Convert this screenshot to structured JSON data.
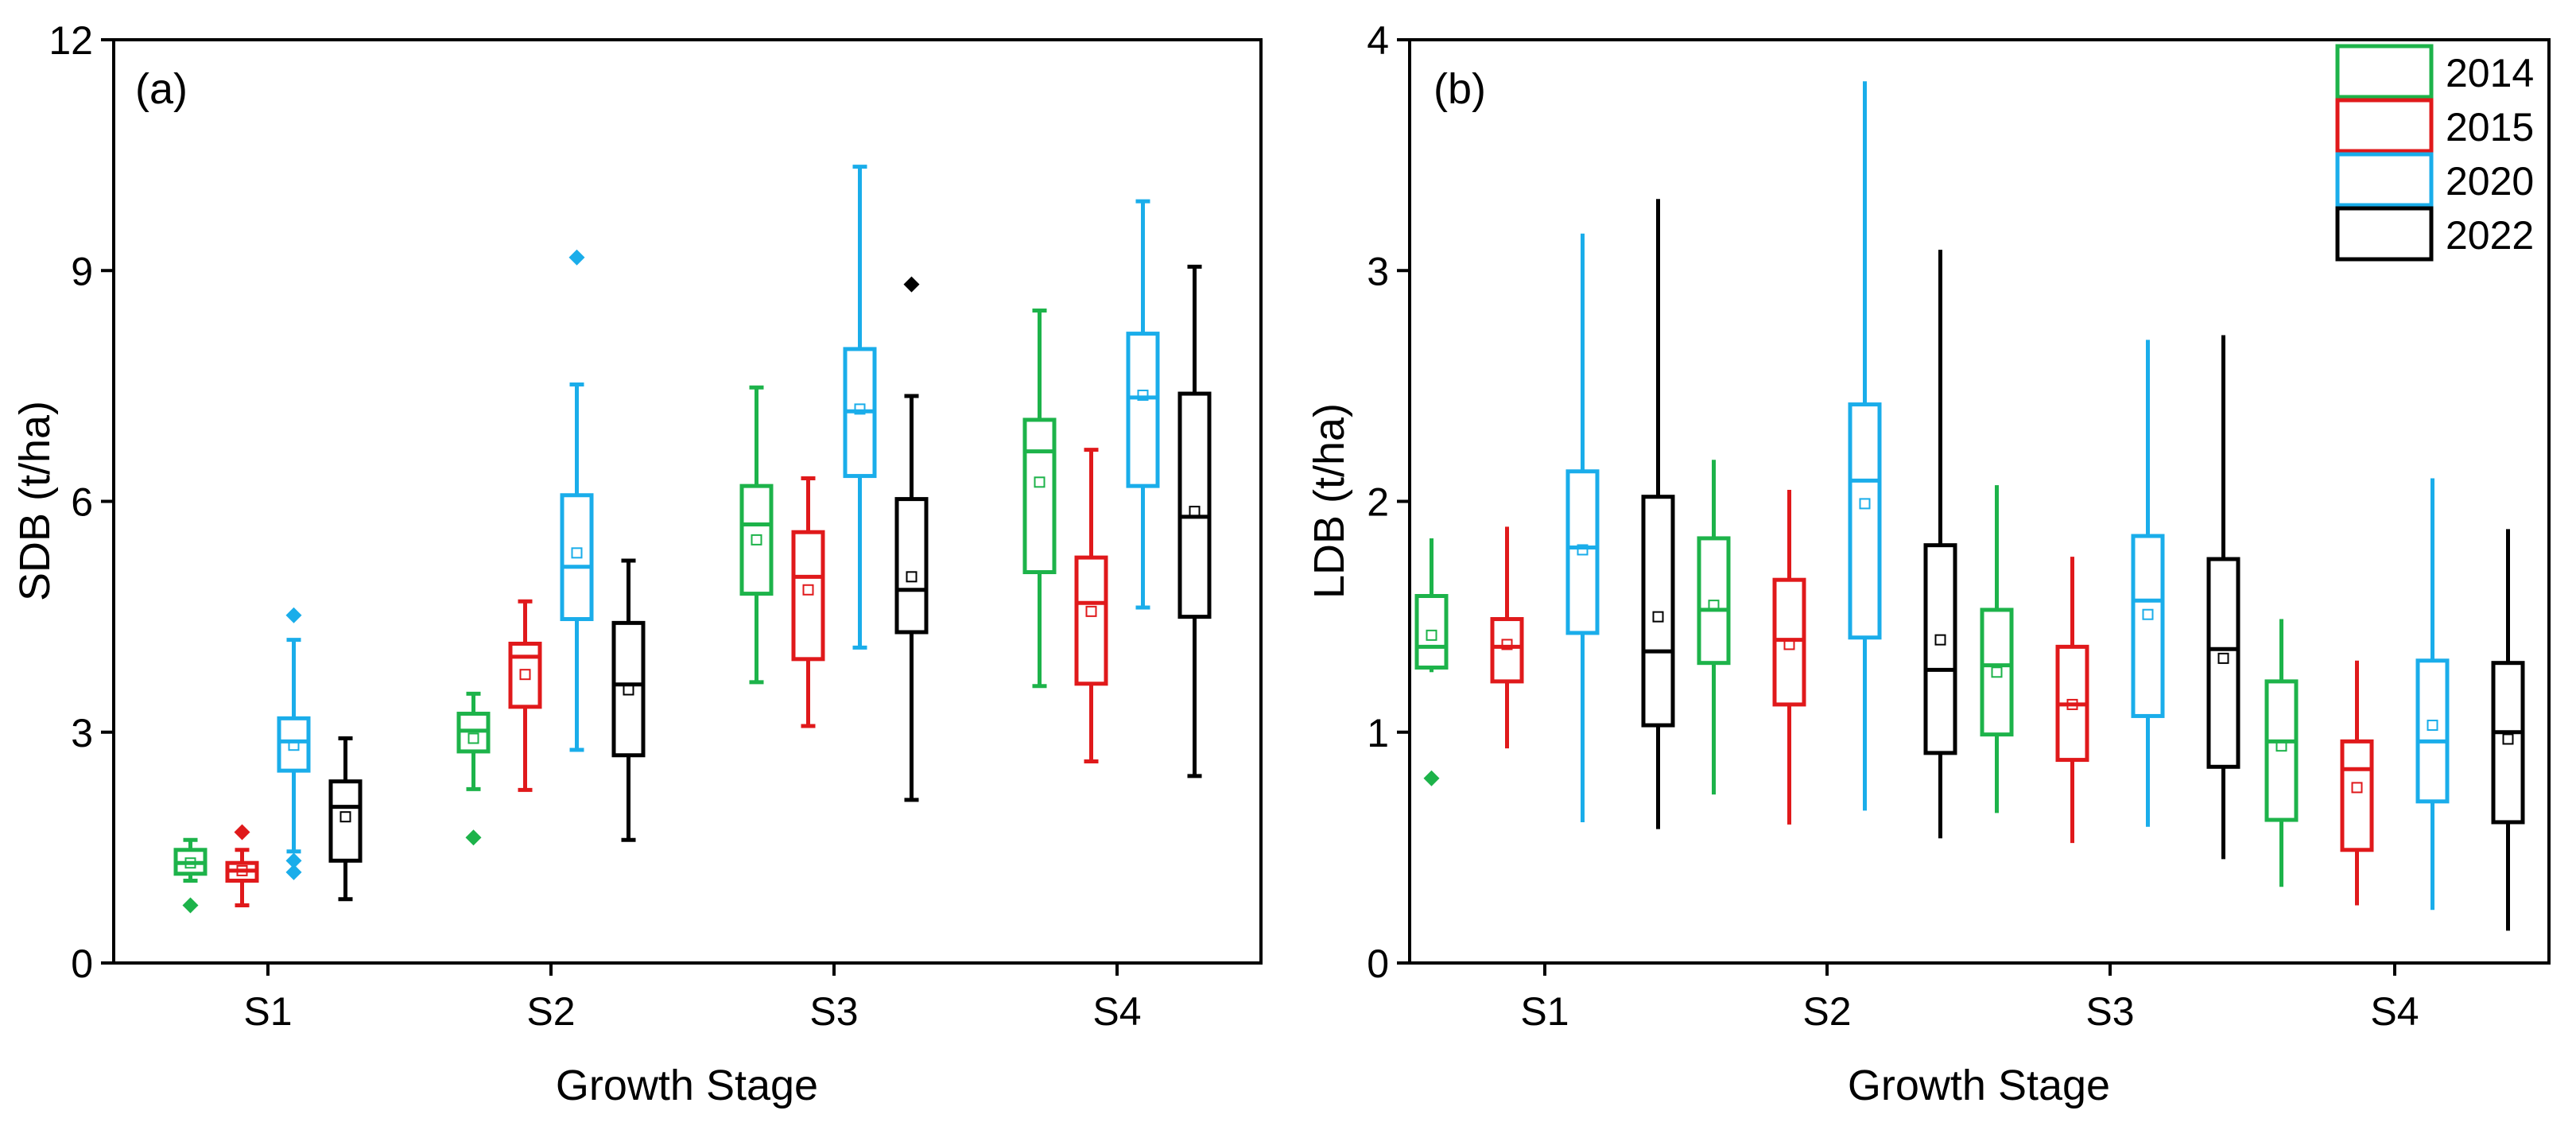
{
  "figure": {
    "colors": {
      "2014": "#1db34a",
      "2015": "#e0191b",
      "2020": "#1aadea",
      "2022": "#000000"
    },
    "legend": {
      "entries": [
        "2014",
        "2015",
        "2020",
        "2022"
      ],
      "placement": "top-right"
    }
  },
  "chart_data": [
    {
      "type": "box",
      "panel_label": "(a)",
      "title": "",
      "xlabel": "Growth Stage",
      "ylabel": "SDB (t/ha)",
      "ylim": [
        0,
        12
      ],
      "yticks": [
        0,
        3,
        6,
        9,
        12
      ],
      "ytick_labels": [
        "0",
        "3",
        "6",
        "9",
        "12"
      ],
      "categories": [
        "S1",
        "S2",
        "S3",
        "S4"
      ],
      "series": [
        {
          "name": "2014",
          "color": "#1db34a",
          "stats": [
            {
              "min": 1.07,
              "q1": 1.16,
              "median": 1.3,
              "q3": 1.47,
              "max": 1.6,
              "mean": 1.3,
              "outliers": [
                0.75
              ]
            },
            {
              "min": 2.26,
              "q1": 2.75,
              "median": 3.02,
              "q3": 3.24,
              "max": 3.5,
              "mean": 2.92,
              "outliers": [
                1.63
              ]
            },
            {
              "min": 3.65,
              "q1": 4.8,
              "median": 5.7,
              "q3": 6.2,
              "max": 7.48,
              "mean": 5.5,
              "outliers": []
            },
            {
              "min": 3.6,
              "q1": 5.08,
              "median": 6.65,
              "q3": 7.06,
              "max": 8.48,
              "mean": 6.25,
              "outliers": []
            }
          ]
        },
        {
          "name": "2015",
          "color": "#e0191b",
          "stats": [
            {
              "min": 0.75,
              "q1": 1.07,
              "median": 1.2,
              "q3": 1.3,
              "max": 1.47,
              "mean": 1.2,
              "outliers": [
                1.7
              ]
            },
            {
              "min": 2.25,
              "q1": 3.33,
              "median": 3.98,
              "q3": 4.15,
              "max": 4.7,
              "mean": 3.75,
              "outliers": []
            },
            {
              "min": 3.08,
              "q1": 3.95,
              "median": 5.02,
              "q3": 5.6,
              "max": 6.3,
              "mean": 4.85,
              "outliers": []
            },
            {
              "min": 2.62,
              "q1": 3.63,
              "median": 4.68,
              "q3": 5.27,
              "max": 6.67,
              "mean": 4.57,
              "outliers": []
            }
          ]
        },
        {
          "name": "2020",
          "color": "#1aadea",
          "stats": [
            {
              "min": 1.45,
              "q1": 2.5,
              "median": 2.88,
              "q3": 3.18,
              "max": 4.2,
              "mean": 2.83,
              "outliers": [
                1.18,
                1.33,
                4.52
              ]
            },
            {
              "min": 2.77,
              "q1": 4.47,
              "median": 5.15,
              "q3": 6.08,
              "max": 7.52,
              "mean": 5.33,
              "outliers": [
                9.17
              ]
            },
            {
              "min": 4.1,
              "q1": 6.33,
              "median": 7.17,
              "q3": 7.98,
              "max": 10.35,
              "mean": 7.2,
              "outliers": []
            },
            {
              "min": 4.62,
              "q1": 6.2,
              "median": 7.35,
              "q3": 8.18,
              "max": 9.9,
              "mean": 7.38,
              "outliers": []
            }
          ]
        },
        {
          "name": "2022",
          "color": "#000000",
          "stats": [
            {
              "min": 0.83,
              "q1": 1.33,
              "median": 2.03,
              "q3": 2.36,
              "max": 2.92,
              "mean": 1.9,
              "outliers": []
            },
            {
              "min": 1.6,
              "q1": 2.7,
              "median": 3.62,
              "q3": 4.42,
              "max": 5.23,
              "mean": 3.55,
              "outliers": []
            },
            {
              "min": 2.12,
              "q1": 4.3,
              "median": 4.85,
              "q3": 6.03,
              "max": 7.37,
              "mean": 5.02,
              "outliers": [
                8.82
              ]
            },
            {
              "min": 2.43,
              "q1": 4.5,
              "median": 5.8,
              "q3": 7.4,
              "max": 9.05,
              "mean": 5.87,
              "outliers": []
            }
          ]
        }
      ]
    },
    {
      "type": "box",
      "panel_label": "(b)",
      "title": "",
      "xlabel": "Growth Stage",
      "ylabel": "LDB (t/ha)",
      "ylim": [
        0,
        4
      ],
      "yticks": [
        0,
        1,
        2,
        3,
        4
      ],
      "ytick_labels": [
        "0",
        "1",
        "2",
        "3",
        "4"
      ],
      "categories": [
        "S1",
        "S2",
        "S3",
        "S4"
      ],
      "series": [
        {
          "name": "2014",
          "color": "#1db34a",
          "stats": [
            {
              "min": 1.26,
              "q1": 1.28,
              "median": 1.37,
              "q3": 1.59,
              "max": 1.84,
              "mean": 1.42,
              "outliers": [
                0.8
              ]
            },
            {
              "min": 0.73,
              "q1": 1.3,
              "median": 1.53,
              "q3": 1.84,
              "max": 2.18,
              "mean": 1.55,
              "outliers": []
            },
            {
              "min": 0.65,
              "q1": 0.99,
              "median": 1.29,
              "q3": 1.53,
              "max": 2.07,
              "mean": 1.26,
              "outliers": []
            },
            {
              "min": 0.33,
              "q1": 0.62,
              "median": 0.96,
              "q3": 1.22,
              "max": 1.49,
              "mean": 0.94,
              "outliers": []
            }
          ]
        },
        {
          "name": "2015",
          "color": "#e0191b",
          "stats": [
            {
              "min": 0.93,
              "q1": 1.22,
              "median": 1.37,
              "q3": 1.49,
              "max": 1.89,
              "mean": 1.38,
              "outliers": []
            },
            {
              "min": 0.6,
              "q1": 1.12,
              "median": 1.4,
              "q3": 1.66,
              "max": 2.05,
              "mean": 1.38,
              "outliers": []
            },
            {
              "min": 0.52,
              "q1": 0.88,
              "median": 1.12,
              "q3": 1.37,
              "max": 1.76,
              "mean": 1.12,
              "outliers": []
            },
            {
              "min": 0.25,
              "q1": 0.49,
              "median": 0.84,
              "q3": 0.96,
              "max": 1.31,
              "mean": 0.76,
              "outliers": []
            }
          ]
        },
        {
          "name": "2020",
          "color": "#1aadea",
          "stats": [
            {
              "min": 0.61,
              "q1": 1.43,
              "median": 1.8,
              "q3": 2.13,
              "max": 3.16,
              "mean": 1.79,
              "outliers": []
            },
            {
              "min": 0.66,
              "q1": 1.41,
              "median": 2.09,
              "q3": 2.42,
              "max": 3.82,
              "mean": 1.99,
              "outliers": []
            },
            {
              "min": 0.59,
              "q1": 1.07,
              "median": 1.57,
              "q3": 1.85,
              "max": 2.7,
              "mean": 1.51,
              "outliers": []
            },
            {
              "min": 0.23,
              "q1": 0.7,
              "median": 0.96,
              "q3": 1.31,
              "max": 2.1,
              "mean": 1.03,
              "outliers": []
            }
          ]
        },
        {
          "name": "2022",
          "color": "#000000",
          "stats": [
            {
              "min": 0.58,
              "q1": 1.03,
              "median": 1.35,
              "q3": 2.02,
              "max": 3.31,
              "mean": 1.5,
              "outliers": []
            },
            {
              "min": 0.54,
              "q1": 0.91,
              "median": 1.27,
              "q3": 1.81,
              "max": 3.09,
              "mean": 1.4,
              "outliers": []
            },
            {
              "min": 0.45,
              "q1": 0.85,
              "median": 1.36,
              "q3": 1.75,
              "max": 2.72,
              "mean": 1.32,
              "outliers": []
            },
            {
              "min": 0.14,
              "q1": 0.61,
              "median": 1.0,
              "q3": 1.3,
              "max": 1.88,
              "mean": 0.97,
              "outliers": []
            }
          ]
        }
      ]
    }
  ]
}
